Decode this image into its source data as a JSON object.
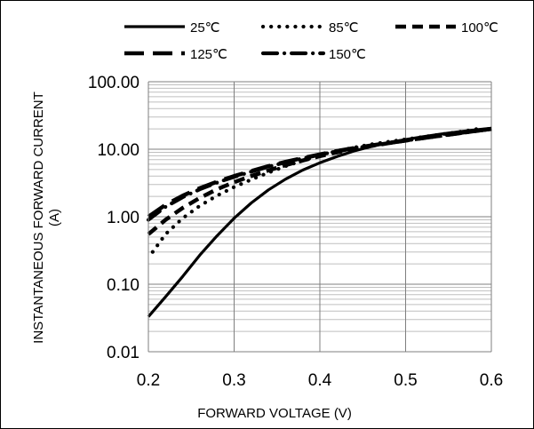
{
  "chart_data": {
    "type": "line",
    "title": "",
    "xlabel": "FORWARD VOLTAGE (V)",
    "ylabel_lines": [
      "INSTANTANEOUS FORWARD CURRENT",
      "(A)"
    ],
    "xlim": [
      0.2,
      0.6
    ],
    "ylim": [
      0.01,
      100
    ],
    "yscale": "log",
    "x_ticks": [
      0.2,
      0.3,
      0.4,
      0.5,
      0.6
    ],
    "x_tick_labels": [
      "0.2",
      "0.3",
      "0.4",
      "0.5",
      "0.6"
    ],
    "y_ticks": [
      0.01,
      0.1,
      1,
      10,
      100
    ],
    "y_tick_labels": [
      "0.01",
      "0.10",
      "1.00",
      "10.00",
      "100.00"
    ],
    "grid": true,
    "legend_position": "top",
    "series": [
      {
        "name": "25℃",
        "style": "solid",
        "color": "#000000",
        "x": [
          0.2,
          0.22,
          0.24,
          0.26,
          0.28,
          0.3,
          0.32,
          0.34,
          0.36,
          0.38,
          0.4,
          0.42,
          0.44,
          0.46,
          0.48,
          0.5,
          0.52,
          0.54,
          0.56,
          0.58,
          0.6
        ],
        "y": [
          0.033,
          0.065,
          0.13,
          0.27,
          0.52,
          0.95,
          1.6,
          2.5,
          3.6,
          4.9,
          6.3,
          7.8,
          9.4,
          11.0,
          12.5,
          13.9,
          15.3,
          16.7,
          18.0,
          19.3,
          20.5
        ]
      },
      {
        "name": "85℃",
        "style": "dotted",
        "color": "#000000",
        "x": [
          0.205,
          0.22,
          0.24,
          0.26,
          0.28,
          0.3,
          0.32,
          0.34,
          0.36,
          0.38,
          0.4,
          0.42,
          0.44,
          0.46,
          0.48,
          0.5,
          0.52,
          0.54,
          0.56,
          0.58,
          0.59
        ],
        "y": [
          0.3,
          0.55,
          0.95,
          1.45,
          2.05,
          2.75,
          3.55,
          4.5,
          5.6,
          6.8,
          8.1,
          9.4,
          10.6,
          11.8,
          12.9,
          14.0,
          15.2,
          16.5,
          17.9,
          19.5,
          21.0
        ]
      },
      {
        "name": "100℃",
        "style": "dashed",
        "color": "#000000",
        "x": [
          0.2,
          0.22,
          0.24,
          0.26,
          0.28,
          0.3,
          0.32,
          0.34,
          0.36,
          0.38,
          0.4,
          0.42,
          0.44,
          0.46,
          0.48,
          0.5,
          0.52,
          0.54,
          0.56,
          0.58,
          0.6
        ],
        "y": [
          0.55,
          0.9,
          1.35,
          1.9,
          2.55,
          3.25,
          4.0,
          4.85,
          5.8,
          6.8,
          7.9,
          9.0,
          10.1,
          11.2,
          12.3,
          13.4,
          14.6,
          15.8,
          17.1,
          18.5,
          20.0
        ]
      },
      {
        "name": "125℃",
        "style": "long-dash",
        "color": "#000000",
        "x": [
          0.2,
          0.22,
          0.24,
          0.26,
          0.28,
          0.3,
          0.32,
          0.34,
          0.36,
          0.38,
          0.4,
          0.42,
          0.44,
          0.46,
          0.48,
          0.5,
          0.52,
          0.54,
          0.56,
          0.58,
          0.6
        ],
        "y": [
          1.0,
          1.5,
          2.05,
          2.65,
          3.3,
          4.0,
          4.75,
          5.6,
          6.5,
          7.4,
          8.4,
          9.4,
          10.4,
          11.4,
          12.4,
          13.5,
          14.7,
          15.9,
          17.2,
          18.6,
          20.0
        ]
      },
      {
        "name": "150℃",
        "style": "dash-dot",
        "color": "#000000",
        "x": [
          0.2,
          0.22,
          0.24,
          0.26,
          0.28,
          0.3,
          0.32,
          0.34,
          0.36,
          0.38,
          0.4,
          0.42,
          0.44,
          0.46,
          0.48,
          0.5,
          0.52,
          0.54,
          0.56,
          0.58,
          0.6
        ],
        "y": [
          0.9,
          1.4,
          1.95,
          2.55,
          3.2,
          3.9,
          4.65,
          5.5,
          6.4,
          7.3,
          8.3,
          9.3,
          10.3,
          11.3,
          12.3,
          13.4,
          14.5,
          15.7,
          17.0,
          18.4,
          20.0
        ]
      }
    ]
  }
}
